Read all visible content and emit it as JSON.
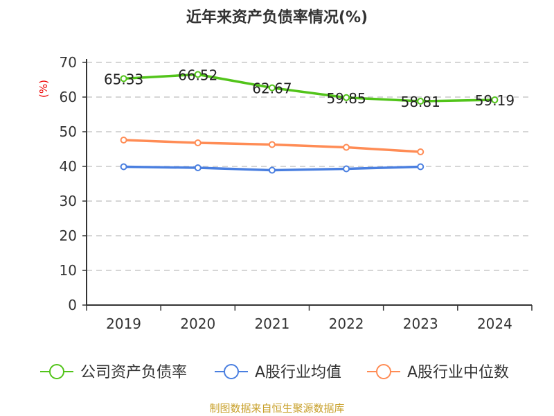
{
  "chart_data": {
    "type": "line",
    "title": "近年来资产负债率情况(%)",
    "ylabel": "(%)",
    "categories": [
      "2019",
      "2020",
      "2021",
      "2022",
      "2023",
      "2024"
    ],
    "ylim": [
      0,
      70
    ],
    "yticks": [
      0,
      10,
      20,
      30,
      40,
      50,
      60,
      70
    ],
    "grid": true,
    "legend_placement": "bottom",
    "series": [
      {
        "name": "公司资产负债率",
        "color": "#52c41a",
        "values": [
          65.33,
          66.52,
          62.67,
          59.85,
          58.81,
          59.19
        ],
        "show_labels": true
      },
      {
        "name": "A股行业均值",
        "color": "#4a7fe0",
        "values": [
          39.9,
          39.6,
          38.9,
          39.3,
          39.9,
          null
        ]
      },
      {
        "name": "A股行业中位数",
        "color": "#ff8c55",
        "values": [
          47.6,
          46.8,
          46.3,
          45.5,
          44.2,
          null
        ]
      }
    ],
    "source": "制图数据来自恒生聚源数据库"
  }
}
